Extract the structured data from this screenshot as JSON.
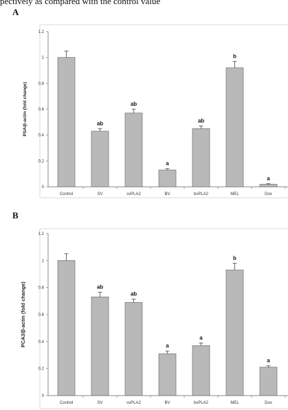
{
  "caption": "pectively as compared with the control value",
  "panels": [
    {
      "letter": "A"
    },
    {
      "letter": "B"
    }
  ],
  "colors": {
    "bar": "#b9b9b9",
    "bar_edge": "#6e6e6e",
    "axis": "#888888",
    "frame": "#d0d0d0"
  },
  "chart_data": [
    {
      "type": "bar",
      "panel": "A",
      "title": "",
      "xlabel": "",
      "ylabel": "PSA/β-actin (fold change)",
      "ylim": [
        0,
        1.2
      ],
      "yticks": [
        "0",
        "0.2",
        "0.4",
        "0.6",
        "0.8",
        "1",
        "1.2"
      ],
      "grid": false,
      "categories": [
        "Control",
        "SV",
        "svPLA2",
        "BV",
        "bvPLA2",
        "MEL",
        "Dox"
      ],
      "values": [
        1.0,
        0.43,
        0.57,
        0.13,
        0.45,
        0.92,
        0.02
      ],
      "errors": [
        0.05,
        0.02,
        0.03,
        0.01,
        0.02,
        0.05,
        0.005
      ],
      "labels": [
        "",
        "ab",
        "ab",
        "a",
        "ab",
        "b",
        "a"
      ]
    },
    {
      "type": "bar",
      "panel": "B",
      "title": "",
      "xlabel": "",
      "ylabel": "PCA3/β-actin (fold change)",
      "ylim": [
        0,
        1.2
      ],
      "yticks": [
        "0",
        "0.2",
        "0.4",
        "0.6",
        "0.8",
        "1",
        "1.2"
      ],
      "grid": false,
      "categories": [
        "Control",
        "SV",
        "svPLA2",
        "BV",
        "bvPLA2",
        "MEL",
        "Dox"
      ],
      "values": [
        1.0,
        0.73,
        0.69,
        0.31,
        0.37,
        0.93,
        0.21
      ],
      "errors": [
        0.05,
        0.035,
        0.025,
        0.02,
        0.02,
        0.05,
        0.01
      ],
      "labels": [
        "",
        "ab",
        "ab",
        "a",
        "a",
        "b",
        "a"
      ]
    }
  ]
}
